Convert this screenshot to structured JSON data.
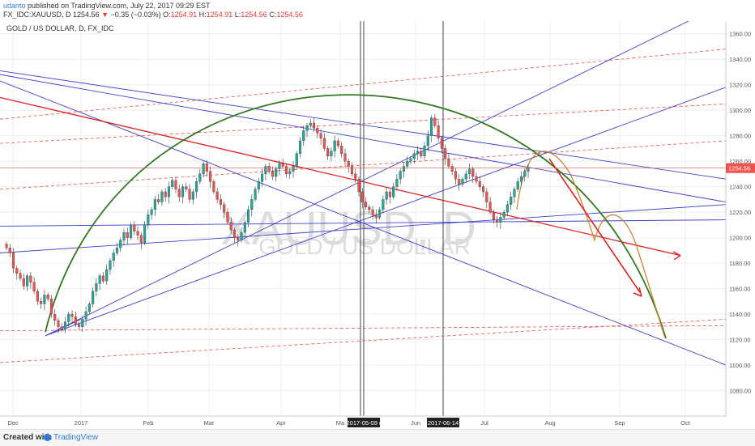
{
  "header": {
    "author": "udanto",
    "published": "published on TradingView.com, July 22, 2017 09:29 EST",
    "symbol": "FX_IDC:XAUUSD, D",
    "last": "1254.56",
    "arrow": "▼",
    "change": "−0.35 (−0.03%)",
    "open_label": "O:",
    "open": "1254.91",
    "high_label": "H:",
    "high": "1254.91",
    "low_label": "L:",
    "low": "1254.56",
    "close_label": "C:",
    "close": "1254.56"
  },
  "pane_title": "GOLD / US DOLLAR, D, FX_IDC",
  "watermark": {
    "symbol": "XAUUSD, D",
    "name": "GOLD / US DOLLAR"
  },
  "colors": {
    "up": "#26a69a",
    "down": "#ef5350",
    "trend": "#3f3fcf",
    "red_line": "#e02020",
    "dashed": "#e05050",
    "arc": "#2f7a1f",
    "projection": "#c8801e",
    "grid": "#eeeeee"
  },
  "chart_data": {
    "type": "candlestick",
    "ylim": [
      1060,
      1370
    ],
    "y_ticks": [
      1080,
      1100,
      1120,
      1140,
      1160,
      1180,
      1200,
      1220,
      1240,
      1260,
      1280,
      1300,
      1320,
      1340,
      1360
    ],
    "x_ticks": [
      "Dec",
      "2017",
      "Feb",
      "Mar",
      "Apr",
      "Ma",
      "Jun",
      "Jul",
      "Aug",
      "Sep",
      "Oct"
    ],
    "last_price": "1254.56",
    "date_markers": [
      "2017-05-09 (",
      "2017-06-14"
    ],
    "ohlc_close": [
      1192,
      1188,
      1176,
      1172,
      1168,
      1162,
      1170,
      1165,
      1158,
      1150,
      1148,
      1155,
      1152,
      1140,
      1135,
      1130,
      1128,
      1134,
      1140,
      1138,
      1132,
      1130,
      1136,
      1142,
      1148,
      1158,
      1164,
      1170,
      1166,
      1175,
      1182,
      1188,
      1192,
      1198,
      1204,
      1200,
      1210,
      1205,
      1202,
      1196,
      1210,
      1218,
      1222,
      1230,
      1228,
      1236,
      1232,
      1240,
      1245,
      1238,
      1232,
      1240,
      1238,
      1230,
      1236,
      1244,
      1250,
      1258,
      1252,
      1244,
      1236,
      1230,
      1226,
      1220,
      1212,
      1206,
      1200,
      1198,
      1204,
      1212,
      1222,
      1230,
      1238,
      1244,
      1250,
      1256,
      1252,
      1248,
      1254,
      1258,
      1256,
      1250,
      1252,
      1256,
      1266,
      1276,
      1284,
      1288,
      1290,
      1286,
      1282,
      1278,
      1270,
      1264,
      1268,
      1276,
      1272,
      1266,
      1260,
      1256,
      1250,
      1246,
      1236,
      1228,
      1224,
      1222,
      1218,
      1216,
      1222,
      1230,
      1236,
      1232,
      1240,
      1246,
      1252,
      1256,
      1260,
      1262,
      1266,
      1268,
      1264,
      1272,
      1280,
      1294,
      1288,
      1278,
      1270,
      1262,
      1256,
      1252,
      1246,
      1242,
      1246,
      1250,
      1254,
      1248,
      1244,
      1240,
      1236,
      1228,
      1220,
      1214,
      1212,
      1216,
      1220,
      1226,
      1232,
      1238,
      1244,
      1248,
      1252,
      1254.56
    ]
  },
  "footer": {
    "created_with": "Created with",
    "brand": "TradingView"
  }
}
